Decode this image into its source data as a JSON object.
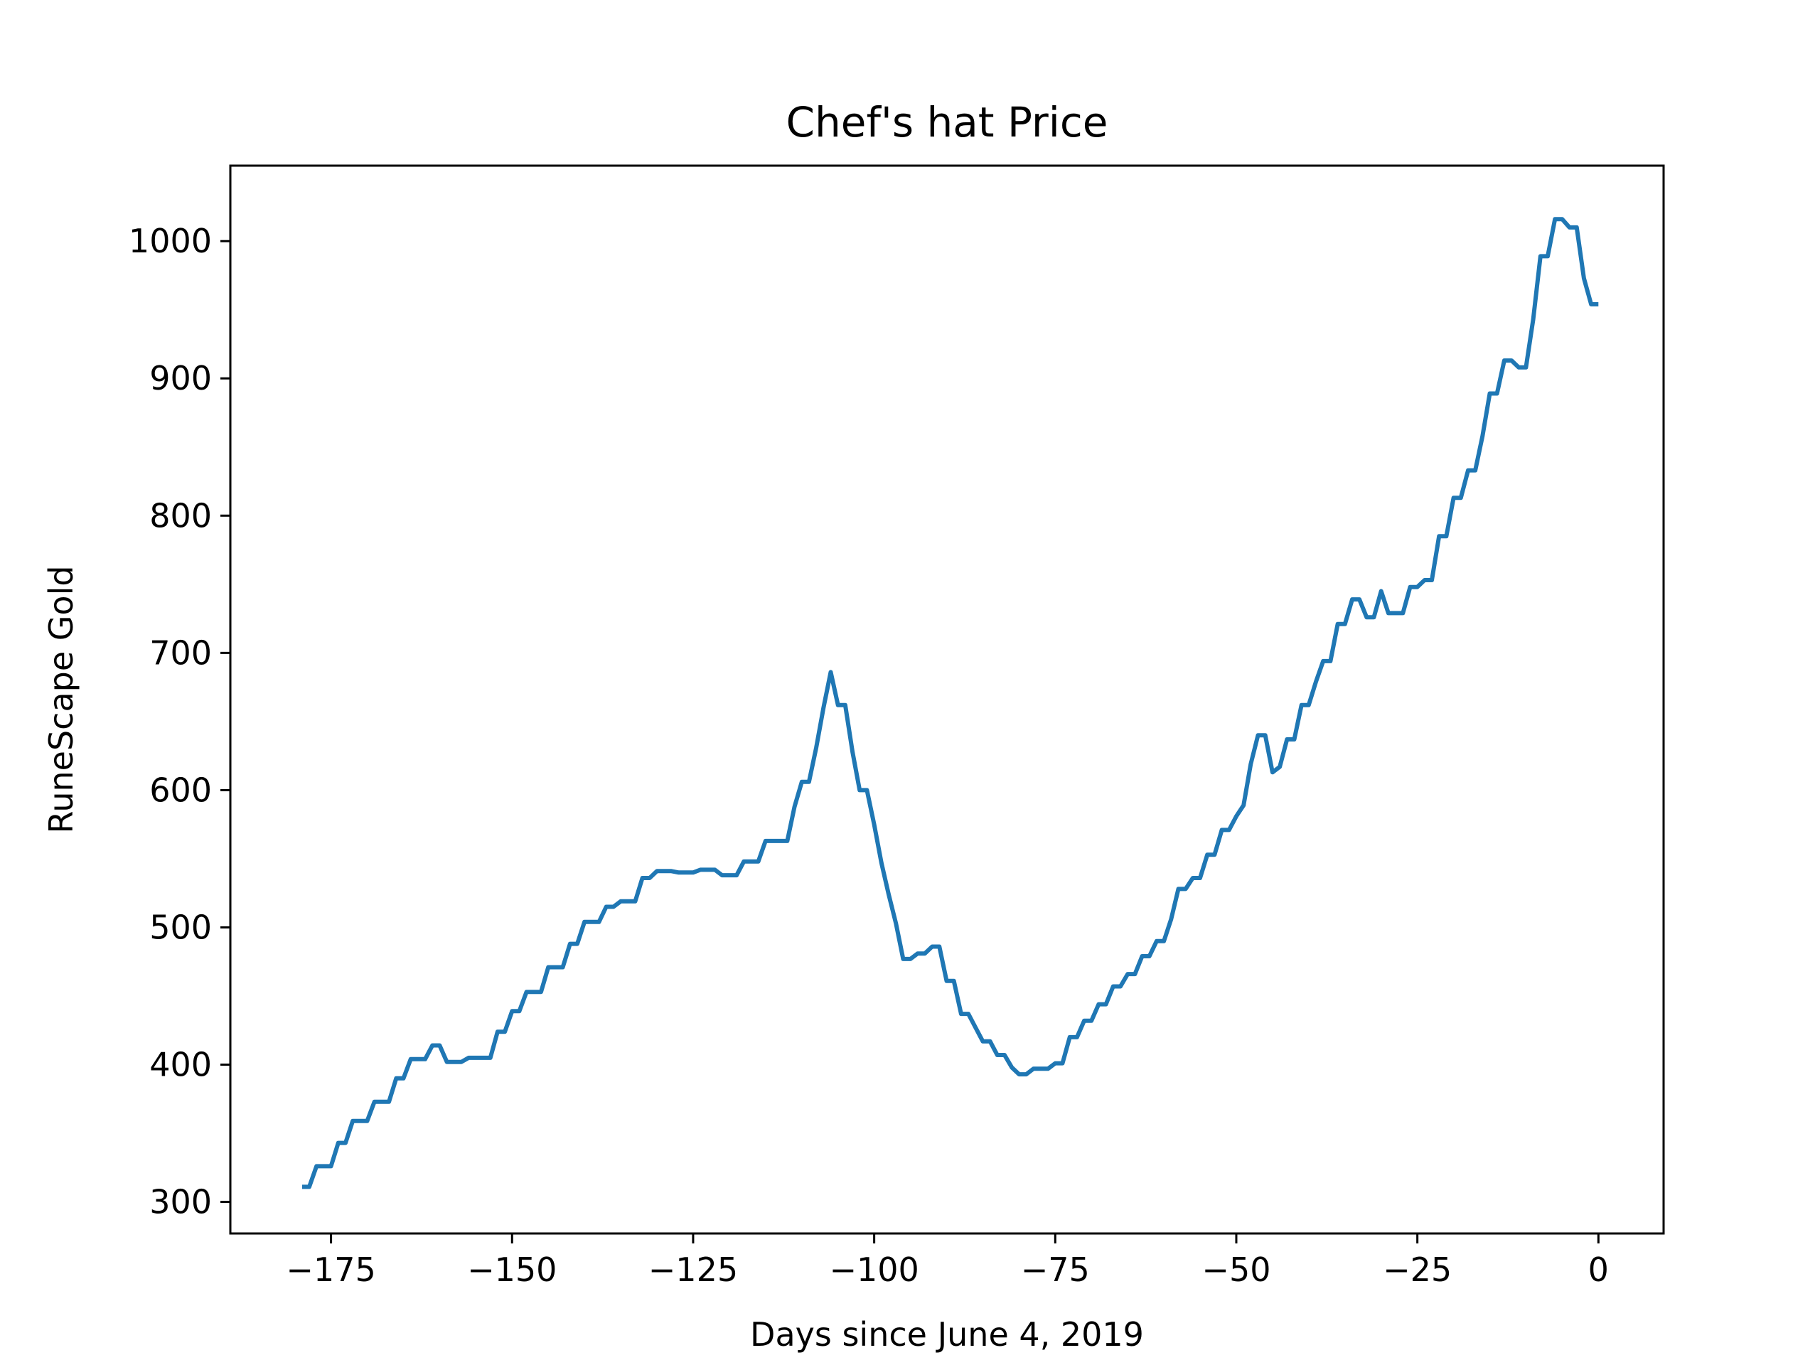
{
  "chart_data": {
    "type": "line",
    "title": "Chef's hat Price",
    "xlabel": "Days since June 4, 2019",
    "ylabel": "RuneScape Gold",
    "xlim": [
      -188.9,
      9.0
    ],
    "ylim": [
      277,
      1055
    ],
    "x_ticks": [
      -175,
      -150,
      -125,
      -100,
      -75,
      -50,
      -25,
      0
    ],
    "x_tick_labels": [
      "−175",
      "−150",
      "−125",
      "−100",
      "−75",
      "−50",
      "−25",
      "0"
    ],
    "y_ticks": [
      300,
      400,
      500,
      600,
      700,
      800,
      900,
      1000
    ],
    "y_tick_labels": [
      "300",
      "400",
      "500",
      "600",
      "700",
      "800",
      "900",
      "1000"
    ],
    "grid": false,
    "legend": "none",
    "series": [
      {
        "color": "#1f77b4",
        "points": [
          [
            -179,
            311
          ],
          [
            -178,
            311
          ],
          [
            -177,
            326
          ],
          [
            -176,
            326
          ],
          [
            -175,
            326
          ],
          [
            -174,
            343
          ],
          [
            -173,
            343
          ],
          [
            -172,
            359
          ],
          [
            -171,
            359
          ],
          [
            -170,
            359
          ],
          [
            -169,
            373
          ],
          [
            -168,
            373
          ],
          [
            -167,
            373
          ],
          [
            -166,
            390
          ],
          [
            -165,
            390
          ],
          [
            -164,
            404
          ],
          [
            -163,
            404
          ],
          [
            -162,
            404
          ],
          [
            -161,
            414
          ],
          [
            -160,
            414
          ],
          [
            -159,
            402
          ],
          [
            -158,
            402
          ],
          [
            -157,
            402
          ],
          [
            -156,
            405
          ],
          [
            -155,
            405
          ],
          [
            -154,
            405
          ],
          [
            -153,
            405
          ],
          [
            -152,
            424
          ],
          [
            -151,
            424
          ],
          [
            -150,
            439
          ],
          [
            -149,
            439
          ],
          [
            -148,
            453
          ],
          [
            -147,
            453
          ],
          [
            -146,
            453
          ],
          [
            -145,
            471
          ],
          [
            -144,
            471
          ],
          [
            -143,
            471
          ],
          [
            -142,
            488
          ],
          [
            -141,
            488
          ],
          [
            -140,
            504
          ],
          [
            -139,
            504
          ],
          [
            -138,
            504
          ],
          [
            -137,
            515
          ],
          [
            -136,
            515
          ],
          [
            -135,
            519
          ],
          [
            -134,
            519
          ],
          [
            -133,
            519
          ],
          [
            -132,
            536
          ],
          [
            -131,
            536
          ],
          [
            -130,
            541
          ],
          [
            -129,
            541
          ],
          [
            -128,
            541
          ],
          [
            -127,
            540
          ],
          [
            -126,
            540
          ],
          [
            -125,
            540
          ],
          [
            -124,
            542
          ],
          [
            -123,
            542
          ],
          [
            -122,
            542
          ],
          [
            -121,
            538
          ],
          [
            -120,
            538
          ],
          [
            -119,
            538
          ],
          [
            -118,
            548
          ],
          [
            -117,
            548
          ],
          [
            -116,
            548
          ],
          [
            -115,
            563
          ],
          [
            -114,
            563
          ],
          [
            -113,
            563
          ],
          [
            -112,
            563
          ],
          [
            -111,
            588
          ],
          [
            -110,
            606
          ],
          [
            -109,
            606
          ],
          [
            -108,
            631
          ],
          [
            -107,
            660
          ],
          [
            -106,
            686
          ],
          [
            -105,
            662
          ],
          [
            -104,
            662
          ],
          [
            -103,
            628
          ],
          [
            -102,
            600
          ],
          [
            -101,
            600
          ],
          [
            -100,
            575
          ],
          [
            -99,
            547
          ],
          [
            -98,
            524
          ],
          [
            -97,
            503
          ],
          [
            -96,
            477
          ],
          [
            -95,
            477
          ],
          [
            -94,
            481
          ],
          [
            -93,
            481
          ],
          [
            -92,
            486
          ],
          [
            -91,
            486
          ],
          [
            -90,
            461
          ],
          [
            -89,
            461
          ],
          [
            -88,
            437
          ],
          [
            -87,
            437
          ],
          [
            -86,
            427
          ],
          [
            -85,
            417
          ],
          [
            -84,
            417
          ],
          [
            -83,
            407
          ],
          [
            -82,
            407
          ],
          [
            -81,
            398
          ],
          [
            -80,
            393
          ],
          [
            -79,
            393
          ],
          [
            -78,
            397
          ],
          [
            -77,
            397
          ],
          [
            -76,
            397
          ],
          [
            -75,
            401
          ],
          [
            -74,
            401
          ],
          [
            -73,
            420
          ],
          [
            -72,
            420
          ],
          [
            -71,
            432
          ],
          [
            -70,
            432
          ],
          [
            -69,
            444
          ],
          [
            -68,
            444
          ],
          [
            -67,
            457
          ],
          [
            -66,
            457
          ],
          [
            -65,
            466
          ],
          [
            -64,
            466
          ],
          [
            -63,
            479
          ],
          [
            -62,
            479
          ],
          [
            -61,
            490
          ],
          [
            -60,
            490
          ],
          [
            -59,
            506
          ],
          [
            -58,
            528
          ],
          [
            -57,
            528
          ],
          [
            -56,
            536
          ],
          [
            -55,
            536
          ],
          [
            -54,
            553
          ],
          [
            -53,
            553
          ],
          [
            -52,
            571
          ],
          [
            -51,
            571
          ],
          [
            -50,
            581
          ],
          [
            -49,
            589
          ],
          [
            -48,
            619
          ],
          [
            -47,
            640
          ],
          [
            -46,
            640
          ],
          [
            -45,
            613
          ],
          [
            -44,
            617
          ],
          [
            -43,
            637
          ],
          [
            -42,
            637
          ],
          [
            -41,
            662
          ],
          [
            -40,
            662
          ],
          [
            -39,
            679
          ],
          [
            -38,
            694
          ],
          [
            -37,
            694
          ],
          [
            -36,
            721
          ],
          [
            -35,
            721
          ],
          [
            -34,
            739
          ],
          [
            -33,
            739
          ],
          [
            -32,
            726
          ],
          [
            -31,
            726
          ],
          [
            -30,
            745
          ],
          [
            -29,
            729
          ],
          [
            -28,
            729
          ],
          [
            -27,
            729
          ],
          [
            -26,
            748
          ],
          [
            -25,
            748
          ],
          [
            -24,
            753
          ],
          [
            -23,
            753
          ],
          [
            -22,
            785
          ],
          [
            -21,
            785
          ],
          [
            -20,
            813
          ],
          [
            -19,
            813
          ],
          [
            -18,
            833
          ],
          [
            -17,
            833
          ],
          [
            -16,
            858
          ],
          [
            -15,
            889
          ],
          [
            -14,
            889
          ],
          [
            -13,
            913
          ],
          [
            -12,
            913
          ],
          [
            -11,
            908
          ],
          [
            -10,
            908
          ],
          [
            -9,
            943
          ],
          [
            -8,
            989
          ],
          [
            -7,
            989
          ],
          [
            -6,
            1016
          ],
          [
            -5,
            1016
          ],
          [
            -4,
            1010
          ],
          [
            -3,
            1010
          ],
          [
            -2,
            973
          ],
          [
            -1,
            954
          ],
          [
            0,
            954
          ]
        ]
      }
    ]
  }
}
